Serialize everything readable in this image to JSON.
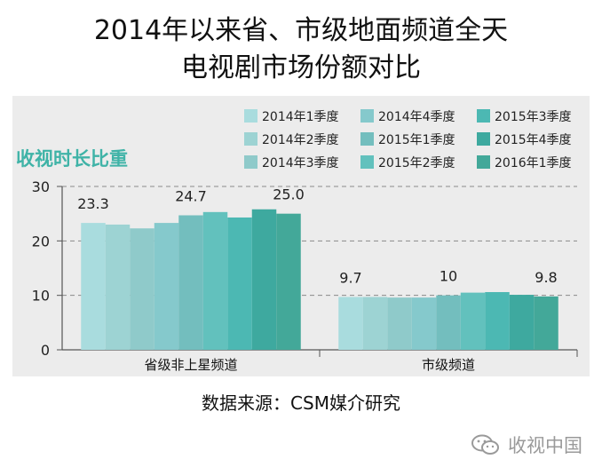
{
  "title_line1": "2014年以来省、市级地面频道全天",
  "title_line2": "电视剧市场份额对比",
  "source_text": "数据来源：CSM媒介研究",
  "watermark_text": "收视中国",
  "chart_data": {
    "type": "bar",
    "chart_label": "收视时长比重",
    "categories": [
      "省级非上星频道",
      "市级频道"
    ],
    "ylim": [
      0,
      30
    ],
    "yticks": [
      0,
      10,
      20,
      30
    ],
    "grid": true,
    "legend_position": "top-right",
    "series": [
      {
        "name": "2014年1季度",
        "color": "#a9dcde",
        "values": [
          23.3,
          9.7
        ]
      },
      {
        "name": "2014年2季度",
        "color": "#9dd3d3",
        "values": [
          23.0,
          9.7
        ]
      },
      {
        "name": "2014年3季度",
        "color": "#8fcaca",
        "values": [
          22.3,
          9.6
        ]
      },
      {
        "name": "2014年4季度",
        "color": "#85c9cc",
        "values": [
          23.3,
          9.6
        ]
      },
      {
        "name": "2015年1季度",
        "color": "#73bebe",
        "values": [
          24.7,
          10.0
        ]
      },
      {
        "name": "2015年2季度",
        "color": "#62c1bd",
        "values": [
          25.3,
          10.5
        ]
      },
      {
        "name": "2015年3季度",
        "color": "#4cb8b3",
        "values": [
          24.3,
          10.6
        ]
      },
      {
        "name": "2015年4季度",
        "color": "#3ea99f",
        "values": [
          25.8,
          10.1
        ]
      },
      {
        "name": "2016年1季度",
        "color": "#43a899",
        "values": [
          25.0,
          9.8
        ]
      }
    ],
    "data_labels": [
      {
        "category": 0,
        "series": 0,
        "text": "23.3"
      },
      {
        "category": 0,
        "series": 4,
        "text": "24.7"
      },
      {
        "category": 0,
        "series": 8,
        "text": "25.0"
      },
      {
        "category": 1,
        "series": 0,
        "text": "9.7"
      },
      {
        "category": 1,
        "series": 4,
        "text": "10"
      },
      {
        "category": 1,
        "series": 8,
        "text": "9.8"
      }
    ]
  }
}
